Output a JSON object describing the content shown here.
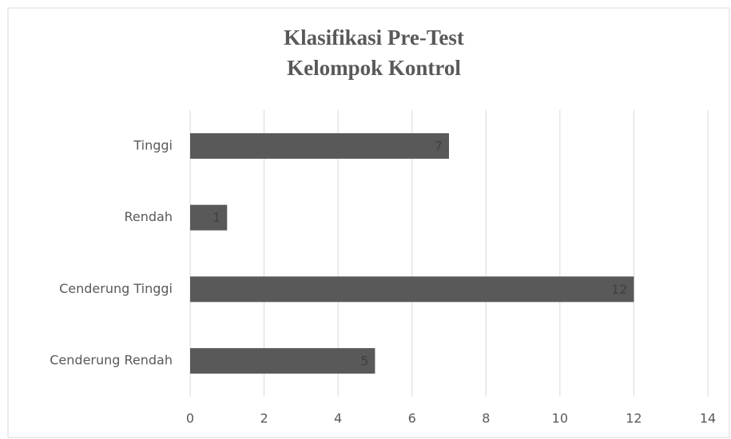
{
  "chart_data": {
    "type": "bar",
    "orientation": "horizontal",
    "title": [
      "Klasifikasi Pre-Test",
      "Kelompok Kontrol"
    ],
    "categories": [
      "Tinggi",
      "Rendah",
      "Cenderung Tinggi",
      "Cenderung Rendah"
    ],
    "values": [
      7,
      1,
      12,
      5
    ],
    "color": "#595959",
    "xlim": [
      0,
      14
    ],
    "xticks": [
      0,
      2,
      4,
      6,
      8,
      10,
      12,
      14
    ],
    "grid": true,
    "data_labels": true
  }
}
